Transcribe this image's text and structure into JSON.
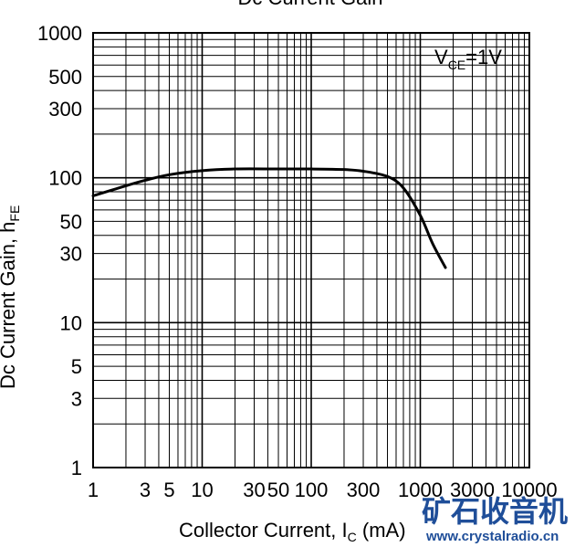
{
  "chart_data": {
    "type": "line",
    "title": "Dc Current Gain",
    "xlabel_main": "Collector Current, I",
    "xlabel_sub": "C",
    "xlabel_unit": " (mA)",
    "ylabel_main": "Dc Current Gain, h",
    "ylabel_sub": "FE",
    "annotation_main": "V",
    "annotation_sub": "CE",
    "annotation_value": "=1V",
    "x_scale": "log",
    "y_scale": "log",
    "xlim": [
      1,
      10000
    ],
    "ylim": [
      1,
      1000
    ],
    "grid": true,
    "x_ticks": [
      {
        "value": 1,
        "label": "1"
      },
      {
        "value": 3,
        "label": "3"
      },
      {
        "value": 5,
        "label": "5"
      },
      {
        "value": 10,
        "label": "10"
      },
      {
        "value": 30,
        "label": "30"
      },
      {
        "value": 50,
        "label": "50"
      },
      {
        "value": 100,
        "label": "100"
      },
      {
        "value": 300,
        "label": "300"
      },
      {
        "value": 1000,
        "label": "1000"
      },
      {
        "value": 3000,
        "label": "3000"
      },
      {
        "value": 10000,
        "label": "10000"
      }
    ],
    "y_ticks": [
      {
        "value": 1,
        "label": "1"
      },
      {
        "value": 3,
        "label": "3"
      },
      {
        "value": 5,
        "label": "5"
      },
      {
        "value": 10,
        "label": "10"
      },
      {
        "value": 30,
        "label": "30"
      },
      {
        "value": 50,
        "label": "50"
      },
      {
        "value": 100,
        "label": "100"
      },
      {
        "value": 300,
        "label": "300"
      },
      {
        "value": 500,
        "label": "500"
      },
      {
        "value": 1000,
        "label": "1000"
      }
    ],
    "series": [
      {
        "x": [
          1,
          2,
          3,
          5,
          10,
          20,
          50,
          100,
          200,
          300,
          500,
          700,
          1000,
          1300,
          1700
        ],
        "y": [
          75,
          88,
          96,
          105,
          112,
          115,
          115,
          115,
          114,
          111,
          102,
          85,
          55,
          35,
          24
        ]
      }
    ]
  },
  "watermark": {
    "text_cn": "矿石收音机",
    "url": "www.crystalradio.cn"
  }
}
